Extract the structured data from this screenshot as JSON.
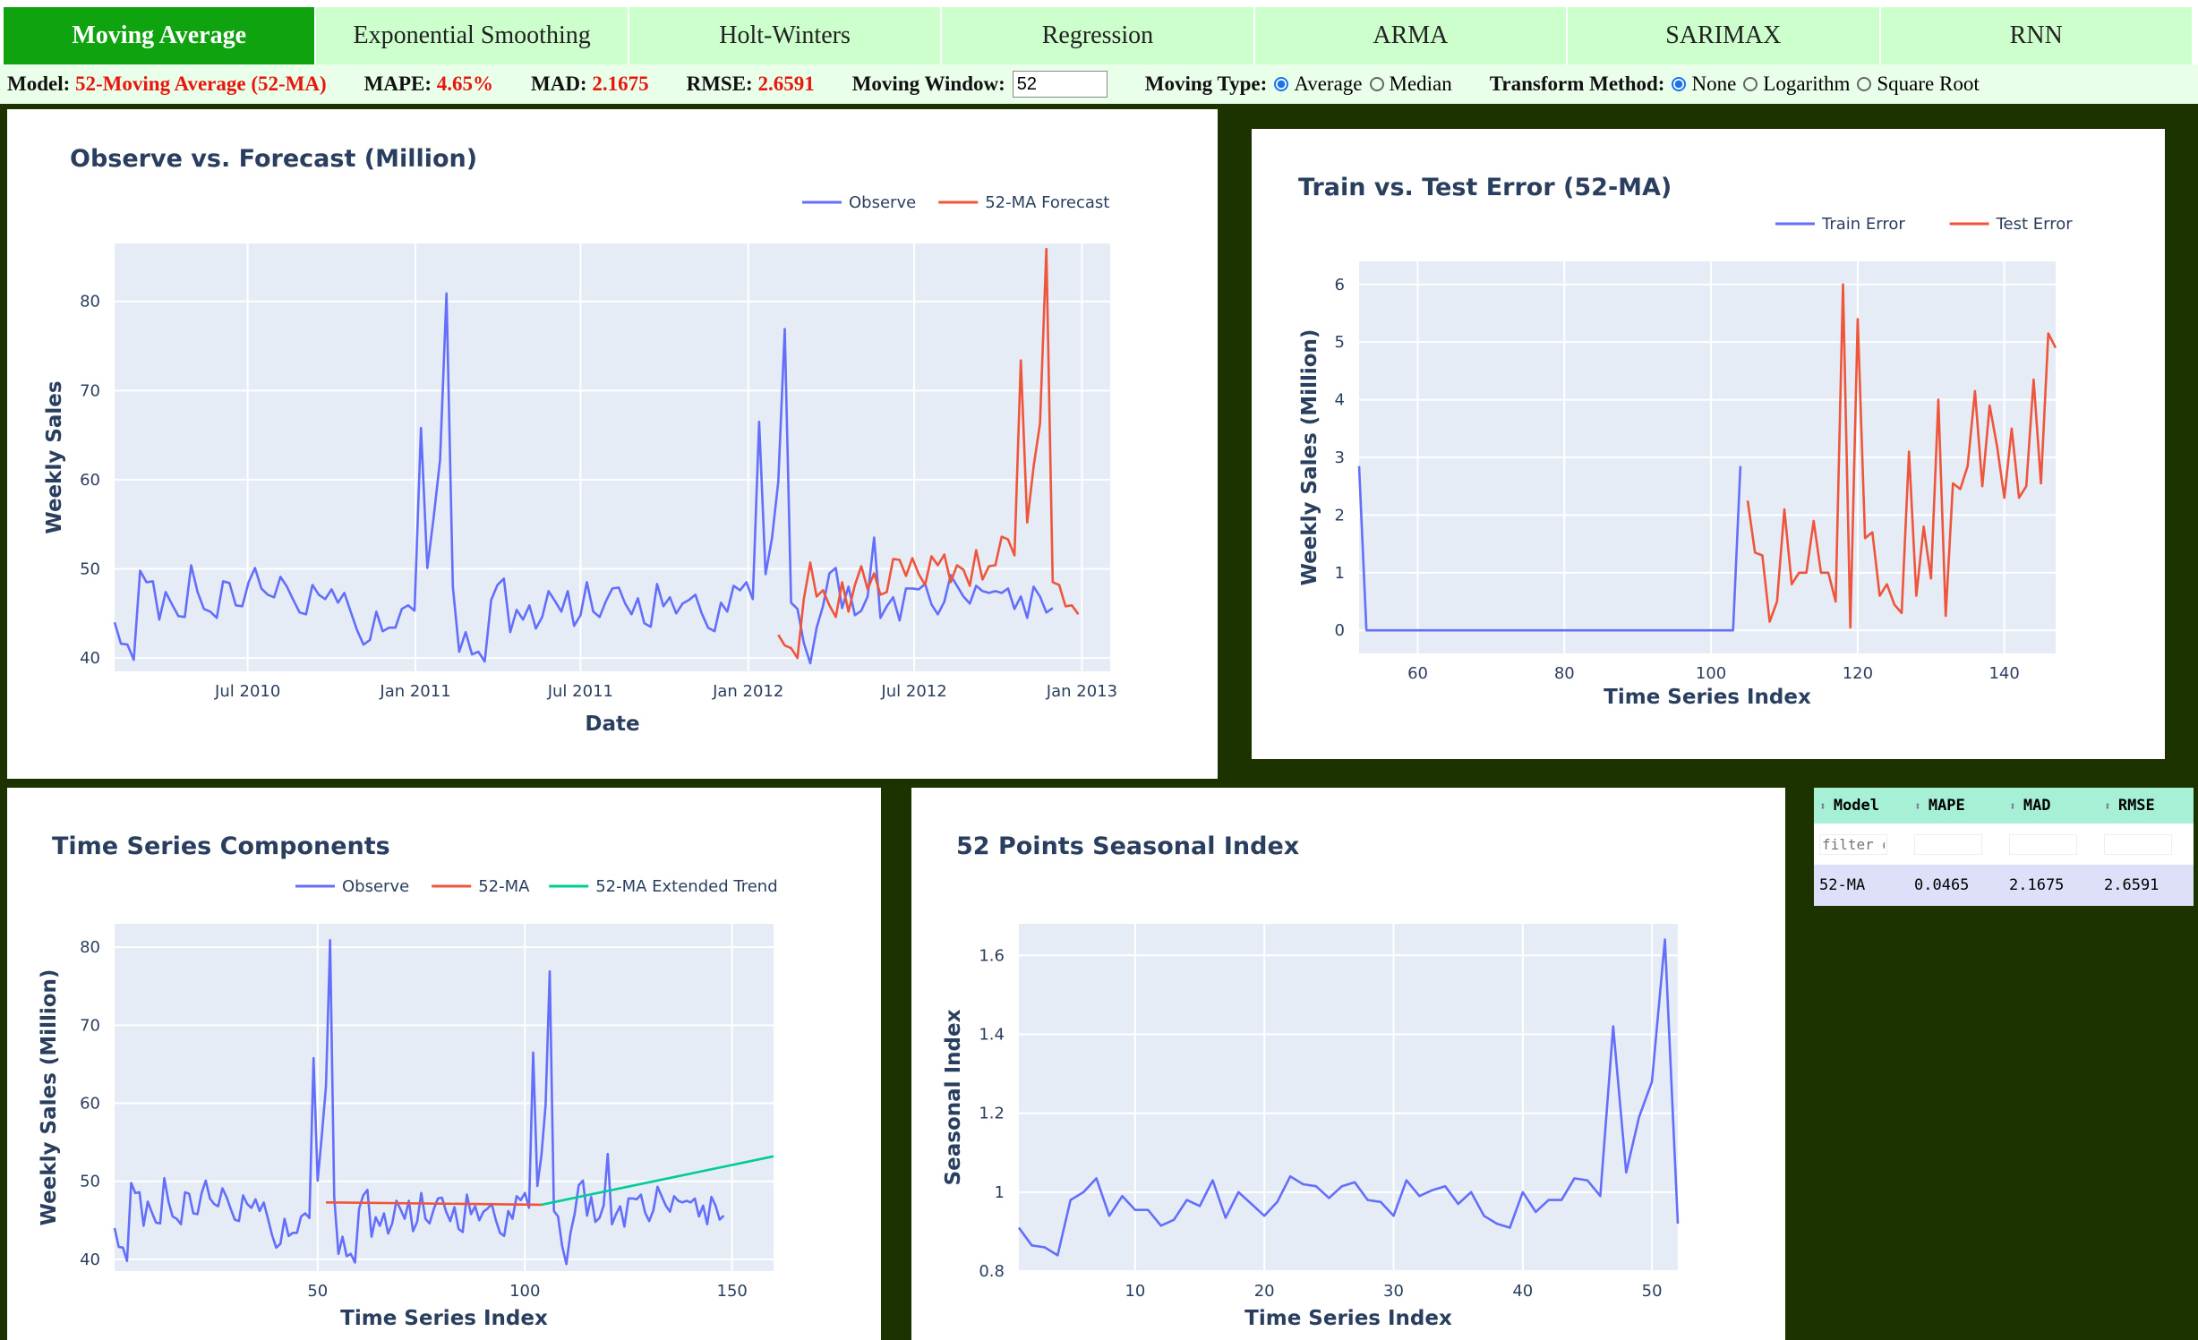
{
  "tabs": [
    "Moving Average",
    "Exponential Smoothing",
    "Holt-Winters",
    "Regression",
    "ARMA",
    "SARIMAX",
    "RNN"
  ],
  "active_tab": "Moving Average",
  "controls": {
    "model_label": "Model:",
    "model_value": "52-Moving Average (52-MA)",
    "mape_label": "MAPE:",
    "mape_value": "4.65%",
    "mad_label": "MAD:",
    "mad_value": "2.1675",
    "rmse_label": "RMSE:",
    "rmse_value": "2.6591",
    "window_label": "Moving Window:",
    "window_value": "52",
    "type_label": "Moving Type:",
    "type_options": [
      "Average",
      "Median"
    ],
    "type_selected": "Average",
    "transform_label": "Transform Method:",
    "transform_options": [
      "None",
      "Logarithm",
      "Square Root"
    ],
    "transform_selected": "None"
  },
  "colors": {
    "observe": "#636efa",
    "forecast": "#ef553b",
    "trend": "#00cc96",
    "accent": "#0fa30f",
    "dark_bg": "#1c3300"
  },
  "table": {
    "headers": [
      "Model",
      "MAPE",
      "MAD",
      "RMSE"
    ],
    "filter_placeholder": "filter data...",
    "rows": [
      [
        "52-MA",
        "0.0465",
        "2.1675",
        "2.6591"
      ]
    ]
  },
  "chart_data": [
    {
      "type": "line",
      "title": "Observe vs. Forecast (Million)",
      "xlabel": "Date",
      "ylabel": "Weekly Sales",
      "x_ticks": [
        "Jul 2010",
        "Jan 2011",
        "Jul 2011",
        "Jan 2012",
        "Jul 2012",
        "Jan 2013"
      ],
      "y_ticks": [
        40,
        50,
        60,
        70,
        80
      ],
      "ylim": [
        38.5,
        86.5
      ],
      "series": [
        {
          "name": "Observe",
          "start_index": 1,
          "values": [
            44,
            41.6,
            41.5,
            39.8,
            49.8,
            48.5,
            48.6,
            44.3,
            47.4,
            46,
            44.7,
            44.6,
            50.4,
            47.4,
            45.5,
            45.2,
            44.5,
            48.6,
            48.4,
            45.9,
            45.8,
            48.5,
            50.1,
            47.8,
            47.1,
            46.8,
            49.1,
            48,
            46.5,
            45.1,
            44.9,
            48.2,
            47.1,
            46.6,
            47.7,
            46.2,
            47.3,
            45.2,
            43.1,
            41.5,
            42,
            45.2,
            43,
            43.4,
            43.4,
            45.5,
            45.9,
            45.3,
            65.8,
            50.1,
            55.8,
            62.2,
            80.9,
            48,
            40.7,
            42.9,
            40.4,
            40.7,
            39.6,
            46.5,
            48.2,
            48.9,
            42.9,
            45.4,
            44.3,
            45.9,
            43.3,
            44.6,
            47.5,
            46.4,
            45.2,
            47.5,
            43.6,
            44.8,
            48.5,
            45.2,
            44.6,
            46.4,
            47.8,
            47.9,
            46.1,
            44.9,
            46.7,
            43.9,
            43.5,
            48.3,
            45.8,
            46.8,
            45,
            46.1,
            46.5,
            47.1,
            45,
            43.4,
            43,
            46.2,
            45.2,
            48.1,
            47.6,
            48.5,
            46.6,
            66.5,
            49.4,
            53.4,
            59.8,
            76.9,
            46.2,
            45.5,
            41.7,
            39.4,
            43.4,
            45.8,
            49.5,
            50.1,
            45.6,
            48,
            44.8,
            45.3,
            46.9,
            53.5,
            44.5,
            45.8,
            46.8,
            44.2,
            47.8,
            47.8,
            47.7,
            48.3,
            46,
            44.9,
            46.3,
            49.3,
            48.1,
            46.9,
            46.1,
            48.1,
            47.5,
            47.3,
            47.5,
            47.3,
            47.8,
            45.5,
            46.9,
            44.5,
            48,
            46.9,
            45.1,
            45.6
          ]
        },
        {
          "name": "52-MA Forecast",
          "start_index": 105,
          "values": [
            42.6,
            41.4,
            41.1,
            40,
            46.6,
            50.7,
            46.9,
            47.6,
            45.9,
            44.6,
            48.5,
            45.2,
            48.2,
            50.3,
            47.7,
            49.5,
            47.1,
            47.4,
            51.1,
            51,
            49.2,
            51.2,
            49.4,
            48.2,
            51.4,
            50.4,
            51.6,
            48.5,
            50.4,
            49.9,
            48.1,
            52.1,
            48.8,
            50.3,
            50.4,
            53.6,
            53.3,
            51.5,
            73.4,
            55.2,
            61.5,
            66.3,
            85.9,
            48.5,
            48.2,
            45.8,
            45.9,
            44.9
          ]
        }
      ]
    },
    {
      "type": "line",
      "title": "Train vs. Test Error (52-MA)",
      "xlabel": "Time Series Index",
      "ylabel": "Weekly Sales (Million)",
      "x_ticks": [
        60,
        80,
        100,
        120,
        140
      ],
      "xlim": [
        52,
        147
      ],
      "ylim": [
        -0.4,
        6.4
      ],
      "y_ticks": [
        0,
        1,
        2,
        3,
        4,
        5,
        6
      ],
      "series": [
        {
          "name": "Train Error",
          "x": [
            52,
            53,
            103,
            104
          ],
          "values": [
            2.85,
            0,
            0,
            2.85
          ]
        },
        {
          "name": "Test Error",
          "start_index": 105,
          "values": [
            2.25,
            1.35,
            1.3,
            0.15,
            0.5,
            2.1,
            0.8,
            1.0,
            1.0,
            1.9,
            1.0,
            1.0,
            0.5,
            6.0,
            0.05,
            5.4,
            1.6,
            1.7,
            0.6,
            0.8,
            0.45,
            0.3,
            3.1,
            0.6,
            1.8,
            0.9,
            4.0,
            0.25,
            2.55,
            2.45,
            2.85,
            4.15,
            2.5,
            3.9,
            3.2,
            2.3,
            3.5,
            2.3,
            2.5,
            4.35,
            2.55,
            5.15,
            4.9
          ]
        }
      ]
    },
    {
      "type": "line",
      "title": "Time Series Components",
      "xlabel": "Time Series Index",
      "ylabel": "Weekly Sales (Million)",
      "x_ticks": [
        50,
        100,
        150
      ],
      "xlim": [
        1,
        160
      ],
      "y_ticks": [
        40,
        50,
        60,
        70,
        80
      ],
      "ylim": [
        38.5,
        83
      ],
      "series": [
        {
          "name": "Observe",
          "note_start": 1
        },
        {
          "name": "52-MA",
          "x": [
            52,
            104
          ],
          "values": [
            47.3,
            47.0
          ]
        },
        {
          "name": "52-MA Extended Trend",
          "x": [
            104,
            160
          ],
          "values": [
            47.0,
            53.2
          ]
        }
      ]
    },
    {
      "type": "line",
      "title": "52 Points Seasonal Index",
      "xlabel": "Time Series Index",
      "ylabel": "Seasonal Index",
      "x_ticks": [
        10,
        20,
        30,
        40,
        50
      ],
      "xlim": [
        1,
        52
      ],
      "y_ticks": [
        0.8,
        1,
        1.2,
        1.4,
        1.6
      ],
      "ylim": [
        0.8,
        1.68
      ],
      "series": [
        {
          "name": "Seasonal Index",
          "start_index": 1,
          "values": [
            0.91,
            0.865,
            0.86,
            0.84,
            0.98,
            1.0,
            1.035,
            0.94,
            0.99,
            0.955,
            0.955,
            0.915,
            0.93,
            0.98,
            0.965,
            1.03,
            0.935,
            1.0,
            0.97,
            0.94,
            0.975,
            1.04,
            1.02,
            1.015,
            0.985,
            1.015,
            1.025,
            0.98,
            0.975,
            0.94,
            1.03,
            0.99,
            1.005,
            1.015,
            0.97,
            1.0,
            0.94,
            0.92,
            0.91,
            1.0,
            0.95,
            0.98,
            0.98,
            1.035,
            1.03,
            0.99,
            1.42,
            1.05,
            1.19,
            1.28,
            1.64,
            0.92
          ]
        }
      ]
    }
  ]
}
